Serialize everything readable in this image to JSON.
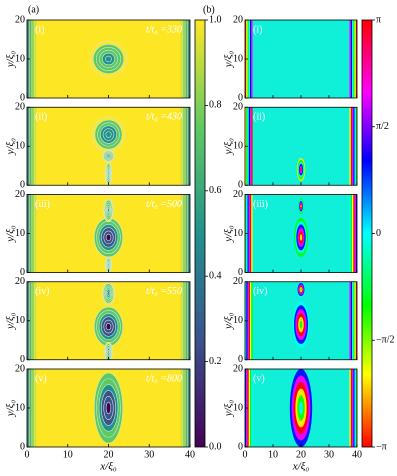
{
  "figure": {
    "panel_a_label": "(a)",
    "panel_b_label": "(b)",
    "x_label": "x/ξ₀",
    "y_label": "y/ξ₀",
    "xlim": [
      0,
      40
    ],
    "ylim": [
      0,
      20
    ],
    "xticks": [
      0,
      10,
      20,
      30,
      40
    ],
    "yticks": [
      0,
      10,
      20
    ],
    "rows": [
      {
        "label": "(i)",
        "time": "t/t₀ =330"
      },
      {
        "label": "(ii)",
        "time": "t/t₀ =430"
      },
      {
        "label": "(iii)",
        "time": "t/t₀ =500"
      },
      {
        "label": "(iv)",
        "time": "t/t₀ =550"
      },
      {
        "label": "(v)",
        "time": "t/t₀ =800"
      }
    ],
    "density_colorbar": {
      "lim": [
        0,
        1
      ],
      "ticks": [
        {
          "value": 0,
          "label": "0.0"
        },
        {
          "value": 0.2,
          "label": "0.2"
        },
        {
          "value": 0.4,
          "label": "0.4"
        },
        {
          "value": 0.6,
          "label": "0.6"
        },
        {
          "value": 0.8,
          "label": "0.8"
        },
        {
          "value": 1,
          "label": "1.0"
        }
      ]
    },
    "phase_colorbar": {
      "lim": [
        -3.1416,
        3.1416
      ],
      "ticks": [
        {
          "value": -3.1416,
          "label": "−π"
        },
        {
          "value": -1.5708,
          "label": "−π/2"
        },
        0,
        {
          "value": 1.5708,
          "label": "π/2"
        },
        {
          "value": 3.1416,
          "label": "π"
        }
      ]
    }
  }
}
